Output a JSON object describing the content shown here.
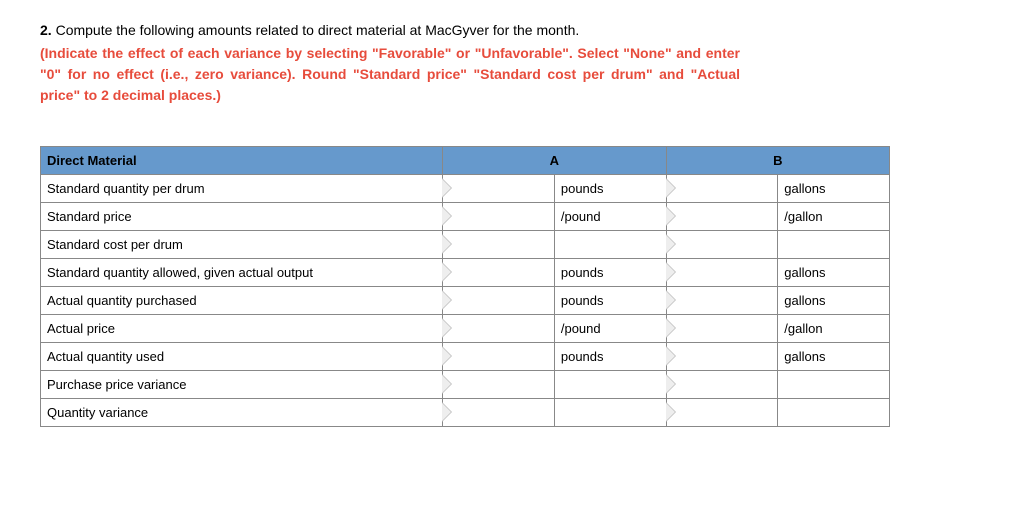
{
  "question": {
    "number": "2.",
    "text": "Compute the following amounts related to direct material at MacGyver for the month.",
    "instruction": "(Indicate the effect of each variance by selecting \"Favorable\" or \"Unfavorable\". Select \"None\" and enter \"0\" for no effect (i.e., zero variance). Round \"Standard price\" \"Standard cost per drum\" and \"Actual price\" to 2 decimal places.)"
  },
  "table": {
    "header": {
      "label": "Direct Material",
      "colA": "A",
      "colB": "B"
    },
    "rows": [
      {
        "label": "Standard quantity per drum",
        "unitA": "pounds",
        "unitB": "gallons",
        "hasInputA": true,
        "hasInputB": true
      },
      {
        "label": "Standard price",
        "unitA": "/pound",
        "unitB": "/gallon",
        "hasInputA": true,
        "hasInputB": true
      },
      {
        "label": "Standard cost per drum",
        "unitA": "",
        "unitB": "",
        "hasInputA": true,
        "hasInputB": true
      },
      {
        "label": "Standard quantity allowed, given actual output",
        "unitA": "pounds",
        "unitB": "gallons",
        "hasInputA": true,
        "hasInputB": true
      },
      {
        "label": "Actual quantity purchased",
        "unitA": "pounds",
        "unitB": "gallons",
        "hasInputA": true,
        "hasInputB": true
      },
      {
        "label": "Actual price",
        "unitA": "/pound",
        "unitB": "/gallon",
        "hasInputA": true,
        "hasInputB": true
      },
      {
        "label": "Actual quantity used",
        "unitA": "pounds",
        "unitB": "gallons",
        "hasInputA": true,
        "hasInputB": true
      },
      {
        "label": "Purchase price variance",
        "unitA": "",
        "unitB": "",
        "hasInputA": true,
        "hasInputB": true
      },
      {
        "label": "Quantity variance",
        "unitA": "",
        "unitB": "",
        "hasInputA": true,
        "hasInputB": true
      }
    ]
  },
  "colors": {
    "header_bg": "#6699cc",
    "border": "#888888",
    "instruction_text": "#e74c3c",
    "tab_fill": "#eeeeee",
    "tab_border": "#bbbbbb"
  }
}
